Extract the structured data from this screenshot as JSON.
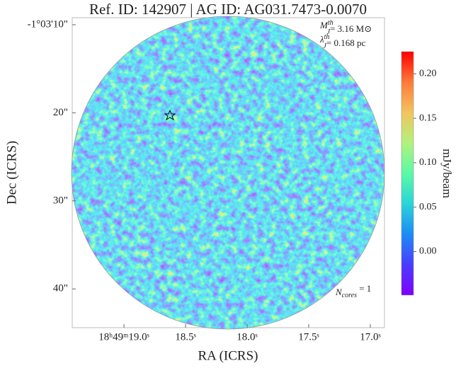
{
  "chart_data": {
    "type": "image",
    "title": "Ref. ID: 142907 | AG ID: AG031.7473-0.0070",
    "x_label": "RA (ICRS)",
    "y_label": "Dec (ICRS)",
    "xlim": [
      19.42,
      16.885
    ],
    "xticks": [
      {
        "value": 19.0,
        "label": "18ʰ49ᵐ19.0ˢ"
      },
      {
        "value": 18.5,
        "label": "18.5ˢ"
      },
      {
        "value": 18.0,
        "label": "18.0ˢ"
      },
      {
        "value": 17.5,
        "label": "17.5ˢ"
      },
      {
        "value": 17.0,
        "label": "17.0ˢ"
      }
    ],
    "ylim": [
      44.4,
      9.2
    ],
    "yticks": [
      {
        "value": 10,
        "label": "-1°03'10\""
      },
      {
        "value": 20,
        "label": "20\""
      },
      {
        "value": 30,
        "label": "30\""
      },
      {
        "value": 40,
        "label": "40\""
      }
    ],
    "colorbar": {
      "label": "mJy/beam",
      "colormap": "rainbow",
      "lim": [
        -0.049,
        0.225
      ],
      "ticks": [
        {
          "value": 0,
          "label": "0.00"
        },
        {
          "value": 0.05,
          "label": "0.05"
        },
        {
          "value": 0.1,
          "label": "0.10"
        },
        {
          "value": 0.15,
          "label": "0.15"
        },
        {
          "value": 0.2,
          "label": "0.20"
        }
      ]
    },
    "annotations": [
      {
        "main": "M",
        "sup": "th",
        "sub": "J",
        "rest": "= 3.16 M⊙"
      },
      {
        "main": "λ",
        "sup": "th",
        "sub": "J",
        "rest": "= 0.168 pc"
      },
      {
        "main": "N",
        "sub": "cores",
        "rest": " = 1"
      }
    ]
  }
}
